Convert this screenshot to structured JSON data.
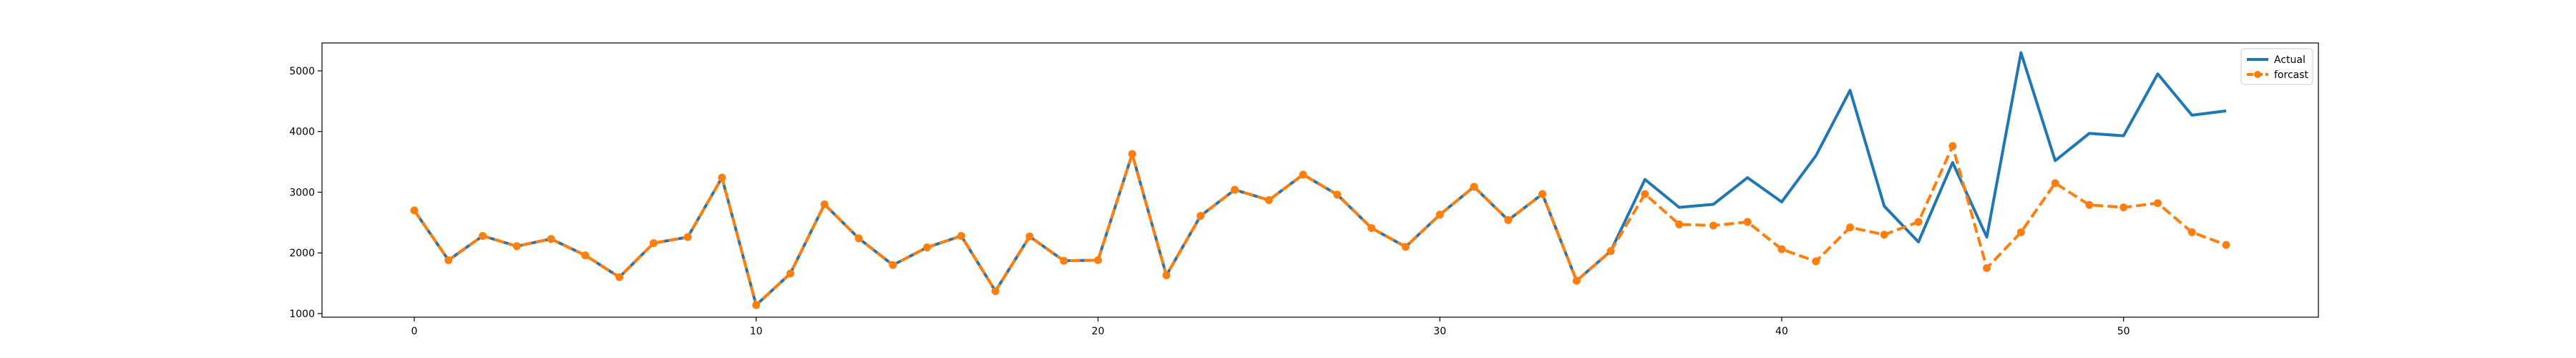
{
  "chart_data": {
    "type": "line",
    "x": [
      0,
      1,
      2,
      3,
      4,
      5,
      6,
      7,
      8,
      9,
      10,
      11,
      12,
      13,
      14,
      15,
      16,
      17,
      18,
      19,
      20,
      21,
      22,
      23,
      24,
      25,
      26,
      27,
      28,
      29,
      30,
      31,
      32,
      33,
      34,
      35,
      36,
      37,
      38,
      39,
      40,
      41,
      42,
      43,
      44,
      45,
      46,
      47,
      48,
      49,
      50,
      51,
      52,
      53
    ],
    "series": [
      {
        "name": "Actual",
        "color": "#1f77b4",
        "style": "solid",
        "values": [
          2700,
          1880,
          2280,
          2110,
          2230,
          1960,
          1600,
          2160,
          2260,
          3240,
          1140,
          1660,
          2800,
          2240,
          1800,
          2090,
          2280,
          1370,
          2270,
          1870,
          1880,
          3630,
          1630,
          2610,
          3040,
          2870,
          3290,
          2960,
          2410,
          2100,
          2630,
          3090,
          2540,
          2970,
          1540,
          2030,
          3210,
          2750,
          2800,
          3240,
          2840,
          3600,
          4680,
          2770,
          2180,
          3490,
          2260,
          5300,
          3520,
          3970,
          3930,
          4950,
          4270,
          4340
        ]
      },
      {
        "name": "forcast",
        "color": "#ff7f0e",
        "style": "dashed",
        "marker": "circle",
        "values": [
          2700,
          1880,
          2280,
          2110,
          2230,
          1960,
          1600,
          2160,
          2260,
          3240,
          1140,
          1660,
          2800,
          2240,
          1800,
          2090,
          2280,
          1370,
          2270,
          1870,
          1880,
          3630,
          1630,
          2610,
          3040,
          2870,
          3290,
          2960,
          2410,
          2100,
          2630,
          3090,
          2540,
          2970,
          1540,
          2030,
          2970,
          2470,
          2450,
          2510,
          2060,
          1860,
          2420,
          2300,
          2510,
          3760,
          1750,
          2340,
          3150,
          2790,
          2750,
          2820,
          2340,
          2130
        ]
      }
    ],
    "xticks": [
      0,
      10,
      20,
      30,
      40,
      50
    ],
    "yticks": [
      1000,
      2000,
      3000,
      4000,
      5000
    ],
    "xlim": [
      -2.7,
      55.7
    ],
    "ylim": [
      940,
      5460
    ],
    "title": "",
    "xlabel": "",
    "ylabel": "",
    "grid": false,
    "legend_position": "top-right"
  }
}
